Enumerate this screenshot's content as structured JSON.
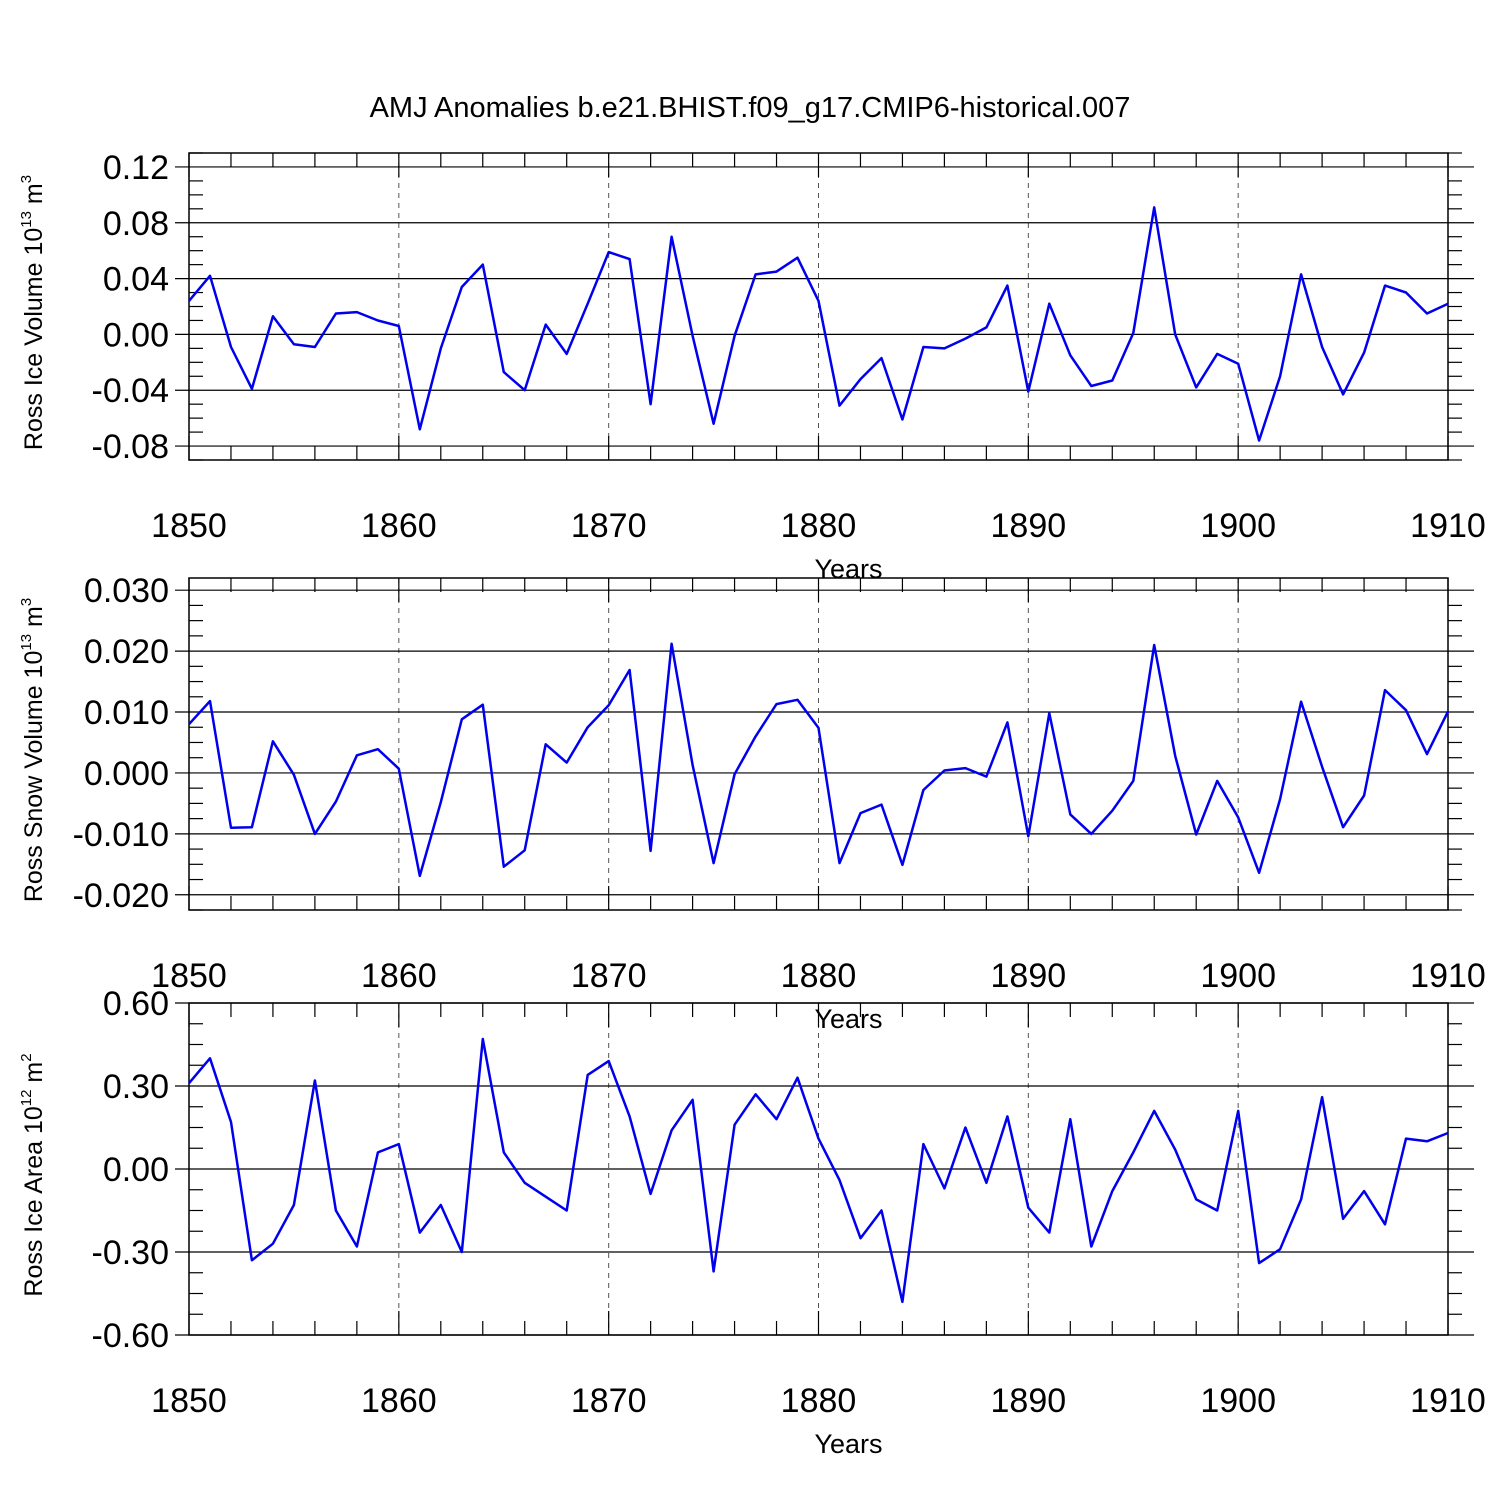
{
  "title": "AMJ Anomalies b.e21.BHIST.f09_g17.CMIP6-historical.007",
  "colors": {
    "series": "#0000ee",
    "axes": "#000000"
  },
  "chart_data": [
    {
      "type": "line",
      "ylabel": "Ross Ice Volume 10",
      "ylabel_exp": "13",
      "ylabel_unit": " m",
      "ylabel_unit_exp": "3",
      "xlabel": "Years",
      "xlim": [
        1850,
        1910
      ],
      "ylim": [
        -0.09,
        0.13
      ],
      "xticks": [
        1850,
        1860,
        1870,
        1880,
        1890,
        1900,
        1910
      ],
      "xtick_labels": [
        "1850",
        "1860",
        "1870",
        "1880",
        "1890",
        "1900",
        "1910"
      ],
      "yticks": [
        -0.08,
        -0.04,
        0.0,
        0.04,
        0.08,
        0.12
      ],
      "ytick_labels": [
        "-0.08",
        "-0.04",
        "0.00",
        "0.04",
        "0.08",
        "0.12"
      ],
      "x": [
        1850,
        1851,
        1852,
        1853,
        1854,
        1855,
        1856,
        1857,
        1858,
        1859,
        1860,
        1861,
        1862,
        1863,
        1864,
        1865,
        1866,
        1867,
        1868,
        1869,
        1870,
        1871,
        1872,
        1873,
        1874,
        1875,
        1876,
        1877,
        1878,
        1879,
        1880,
        1881,
        1882,
        1883,
        1884,
        1885,
        1886,
        1887,
        1888,
        1889,
        1890,
        1891,
        1892,
        1893,
        1894,
        1895,
        1896,
        1897,
        1898,
        1899,
        1900,
        1901,
        1902,
        1903,
        1904,
        1905,
        1906,
        1907,
        1908,
        1909,
        1910
      ],
      "values": [
        0.024,
        0.042,
        -0.009,
        -0.039,
        0.013,
        -0.007,
        -0.009,
        0.015,
        0.016,
        0.01,
        0.006,
        -0.068,
        -0.01,
        0.034,
        0.05,
        -0.027,
        -0.04,
        0.007,
        -0.014,
        0.022,
        0.059,
        0.054,
        -0.05,
        0.07,
        -0.001,
        -0.064,
        -0.001,
        0.043,
        0.045,
        0.055,
        0.024,
        -0.051,
        -0.032,
        -0.017,
        -0.061,
        -0.009,
        -0.01,
        -0.003,
        0.005,
        0.035,
        -0.041,
        0.022,
        -0.015,
        -0.037,
        -0.033,
        0.001,
        0.091,
        0.0,
        -0.038,
        -0.014,
        -0.021,
        -0.076,
        -0.03,
        0.043,
        -0.009,
        -0.043,
        -0.013,
        0.035,
        0.03,
        0.015,
        0.022
      ]
    },
    {
      "type": "line",
      "ylabel": "Ross Snow Volume 10",
      "ylabel_exp": "13",
      "ylabel_unit": " m",
      "ylabel_unit_exp": "3",
      "xlabel": "Years",
      "xlim": [
        1850,
        1910
      ],
      "ylim": [
        -0.0225,
        0.032
      ],
      "xticks": [
        1850,
        1860,
        1870,
        1880,
        1890,
        1900,
        1910
      ],
      "xtick_labels": [
        "1850",
        "1860",
        "1870",
        "1880",
        "1890",
        "1900",
        "1910"
      ],
      "yticks": [
        -0.02,
        -0.01,
        0.0,
        0.01,
        0.02,
        0.03
      ],
      "ytick_labels": [
        "-0.020",
        "-0.010",
        "0.000",
        "0.010",
        "0.020",
        "0.030"
      ],
      "x": [
        1850,
        1851,
        1852,
        1853,
        1854,
        1855,
        1856,
        1857,
        1858,
        1859,
        1860,
        1861,
        1862,
        1863,
        1864,
        1865,
        1866,
        1867,
        1868,
        1869,
        1870,
        1871,
        1872,
        1873,
        1874,
        1875,
        1876,
        1877,
        1878,
        1879,
        1880,
        1881,
        1882,
        1883,
        1884,
        1885,
        1886,
        1887,
        1888,
        1889,
        1890,
        1891,
        1892,
        1893,
        1894,
        1895,
        1896,
        1897,
        1898,
        1899,
        1900,
        1901,
        1902,
        1903,
        1904,
        1905,
        1906,
        1907,
        1908,
        1909,
        1910
      ],
      "values": [
        0.008,
        0.0118,
        -0.009,
        -0.0089,
        0.0052,
        -0.0003,
        -0.01,
        -0.0047,
        0.0029,
        0.0039,
        0.0007,
        -0.0169,
        -0.0048,
        0.0088,
        0.0112,
        -0.0154,
        -0.0127,
        0.0047,
        0.0017,
        0.0075,
        0.0111,
        0.0169,
        -0.0128,
        0.0212,
        0.0013,
        -0.0148,
        -0.0002,
        0.006,
        0.0113,
        0.012,
        0.0074,
        -0.0148,
        -0.0066,
        -0.0052,
        -0.0151,
        -0.0028,
        0.0004,
        0.0008,
        -0.0006,
        0.0083,
        -0.0104,
        0.0098,
        -0.0068,
        -0.01,
        -0.0062,
        -0.0013,
        0.021,
        0.0028,
        -0.0101,
        -0.0013,
        -0.0073,
        -0.0164,
        -0.0043,
        0.0117,
        0.001,
        -0.0089,
        -0.0037,
        0.0136,
        0.0103,
        0.0031,
        0.0101
      ]
    },
    {
      "type": "line",
      "ylabel": "Ross Ice Area 10",
      "ylabel_exp": "12",
      "ylabel_unit": " m",
      "ylabel_unit_exp": "2",
      "xlabel": "Years",
      "xlim": [
        1850,
        1910
      ],
      "ylim": [
        -0.6,
        0.6
      ],
      "xticks": [
        1850,
        1860,
        1870,
        1880,
        1890,
        1900,
        1910
      ],
      "xtick_labels": [
        "1850",
        "1860",
        "1870",
        "1880",
        "1890",
        "1900",
        "1910"
      ],
      "yticks": [
        -0.6,
        -0.3,
        0.0,
        0.3,
        0.6
      ],
      "ytick_labels": [
        "-0.60",
        "-0.30",
        "0.00",
        "0.30",
        "0.60"
      ],
      "x": [
        1850,
        1851,
        1852,
        1853,
        1854,
        1855,
        1856,
        1857,
        1858,
        1859,
        1860,
        1861,
        1862,
        1863,
        1864,
        1865,
        1866,
        1867,
        1868,
        1869,
        1870,
        1871,
        1872,
        1873,
        1874,
        1875,
        1876,
        1877,
        1878,
        1879,
        1880,
        1881,
        1882,
        1883,
        1884,
        1885,
        1886,
        1887,
        1888,
        1889,
        1890,
        1891,
        1892,
        1893,
        1894,
        1895,
        1896,
        1897,
        1898,
        1899,
        1900,
        1901,
        1902,
        1903,
        1904,
        1905,
        1906,
        1907,
        1908,
        1909,
        1910
      ],
      "values": [
        0.31,
        0.4,
        0.17,
        -0.33,
        -0.27,
        -0.13,
        0.32,
        -0.15,
        -0.28,
        0.06,
        0.09,
        -0.23,
        -0.13,
        -0.3,
        0.47,
        0.06,
        -0.05,
        -0.1,
        -0.15,
        0.34,
        0.39,
        0.19,
        -0.09,
        0.14,
        0.25,
        -0.37,
        0.16,
        0.27,
        0.18,
        0.33,
        0.11,
        -0.04,
        -0.25,
        -0.15,
        -0.48,
        0.09,
        -0.07,
        0.15,
        -0.05,
        0.19,
        -0.14,
        -0.23,
        0.18,
        -0.28,
        -0.08,
        0.06,
        0.21,
        0.07,
        -0.11,
        -0.15,
        0.21,
        -0.34,
        -0.29,
        -0.11,
        0.26,
        -0.18,
        -0.08,
        -0.2,
        0.11,
        0.1,
        0.13
      ]
    }
  ]
}
